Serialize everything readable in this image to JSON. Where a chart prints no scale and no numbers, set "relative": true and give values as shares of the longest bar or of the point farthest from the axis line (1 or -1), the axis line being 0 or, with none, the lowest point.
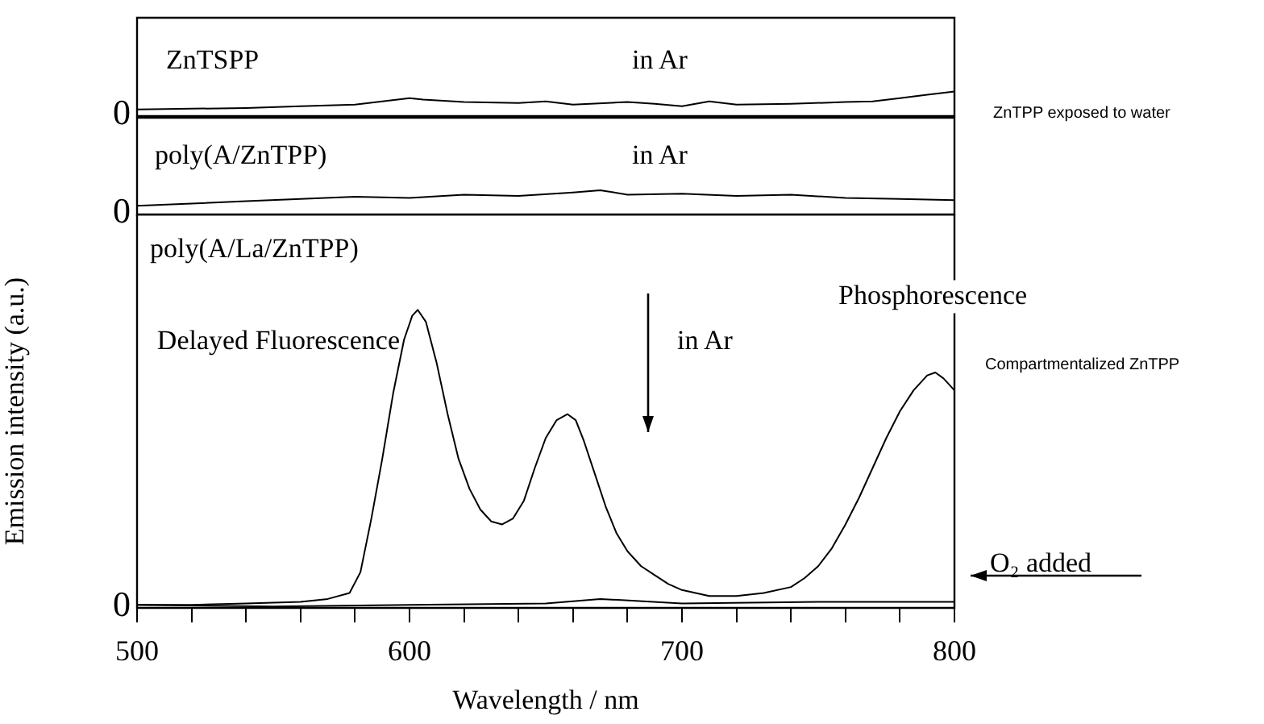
{
  "chart_data": [
    {
      "type": "line",
      "relative": true,
      "xlim": [
        500,
        800
      ],
      "tick_labels": false,
      "marker": "none",
      "x": [
        500,
        520,
        540,
        560,
        580,
        590,
        600,
        605,
        620,
        640,
        650,
        660,
        680,
        690,
        700,
        710,
        720,
        740,
        760,
        770,
        780,
        790,
        800
      ],
      "series": [
        {
          "name": "in Ar",
          "color": "#000000",
          "values": [
            0.27,
            0.3,
            0.33,
            0.4,
            0.47,
            0.6,
            0.73,
            0.67,
            0.57,
            0.53,
            0.6,
            0.47,
            0.57,
            0.5,
            0.4,
            0.6,
            0.47,
            0.5,
            0.57,
            0.6,
            0.73,
            0.87,
            1
          ]
        }
      ],
      "annotations": [
        "ZnTSPP",
        "ZnTPP exposed to water",
        "0"
      ]
    },
    {
      "type": "line",
      "relative": true,
      "xlim": [
        500,
        800
      ],
      "tick_labels": false,
      "marker": "none",
      "x": [
        500,
        520,
        540,
        560,
        580,
        600,
        620,
        640,
        660,
        670,
        680,
        700,
        720,
        740,
        760,
        780,
        800
      ],
      "series": [
        {
          "name": "in Ar",
          "color": "#000000",
          "values": [
            0.36,
            0.45,
            0.55,
            0.64,
            0.73,
            0.68,
            0.82,
            0.77,
            0.91,
            1,
            0.82,
            0.86,
            0.77,
            0.82,
            0.68,
            0.64,
            0.59
          ]
        }
      ],
      "annotations": [
        "poly(A/ZnTPP)",
        "0"
      ]
    },
    {
      "type": "line",
      "relative": true,
      "xlim": [
        500,
        800
      ],
      "tick_labels": "x",
      "marker": "none",
      "xticks": [
        500,
        {
          "value": 520,
          "label": null
        },
        {
          "value": 540,
          "label": null
        },
        {
          "value": 560,
          "label": null
        },
        {
          "value": 580,
          "label": null
        },
        600,
        {
          "value": 620,
          "label": null
        },
        {
          "value": 640,
          "label": null
        },
        {
          "value": 660,
          "label": null
        },
        {
          "value": 680,
          "label": null
        },
        700,
        {
          "value": 720,
          "label": null
        },
        {
          "value": 740,
          "label": null
        },
        {
          "value": 760,
          "label": null
        },
        {
          "value": 780,
          "label": null
        },
        800
      ],
      "xlabel": "Wavelength / nm",
      "ylabel": "Emission intensity (a.u.)",
      "x": [
        500,
        520,
        540,
        560,
        570,
        578,
        582,
        586,
        590,
        594,
        598,
        601,
        603,
        606,
        610,
        614,
        618,
        622,
        626,
        630,
        634,
        638,
        642,
        646,
        650,
        654,
        658,
        661,
        664,
        668,
        672,
        676,
        680,
        685,
        690,
        695,
        700,
        705,
        710,
        720,
        730,
        740,
        745,
        750,
        755,
        760,
        765,
        770,
        775,
        780,
        785,
        790,
        793,
        796,
        800
      ],
      "series": [
        {
          "color": "#000000",
          "values": [
            0.01,
            0.01,
            0.015,
            0.02,
            0.03,
            0.05,
            0.12,
            0.3,
            0.5,
            0.72,
            0.9,
            0.98,
            1,
            0.96,
            0.82,
            0.65,
            0.5,
            0.4,
            0.33,
            0.29,
            0.28,
            0.3,
            0.36,
            0.47,
            0.57,
            0.63,
            0.65,
            0.63,
            0.56,
            0.45,
            0.34,
            0.25,
            0.19,
            0.14,
            0.11,
            0.08,
            0.06,
            0.05,
            0.04,
            0.04,
            0.05,
            0.07,
            0.1,
            0.14,
            0.2,
            0.28,
            0.37,
            0.47,
            0.57,
            0.66,
            0.73,
            0.78,
            0.79,
            0.77,
            0.73
          ]
        },
        {
          "name": "O₂ added",
          "color": "#000000",
          "x": [
            500,
            550,
            600,
            650,
            670,
            700,
            750,
            800
          ],
          "values": [
            0.01,
            0.005,
            0.01,
            0.015,
            0.03,
            0.015,
            0.02,
            0.02
          ]
        }
      ],
      "annotations": [
        "poly(A/La/ZnTPP)",
        "Delayed Fluorescence",
        "Phosphorescence",
        "Compartmentalized ZnTPP",
        "in Ar",
        "0"
      ]
    }
  ]
}
